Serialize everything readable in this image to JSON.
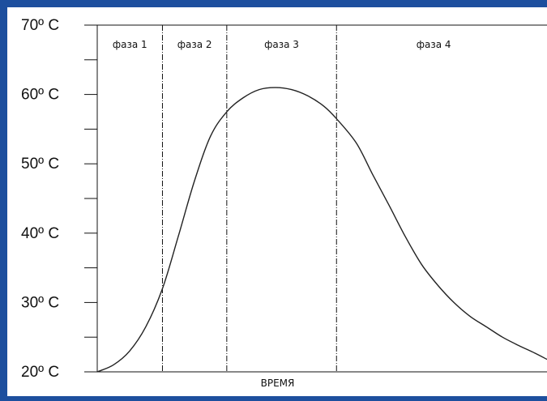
{
  "chart_data": {
    "type": "line",
    "title": "",
    "xlabel": "ВРЕМЯ",
    "ylabel": "",
    "ylim": [
      20,
      70
    ],
    "yticks": [
      {
        "value": 70,
        "label": "70º C"
      },
      {
        "value": 60,
        "label": "60º C"
      },
      {
        "value": 50,
        "label": "50º C"
      },
      {
        "value": 40,
        "label": "40º C"
      },
      {
        "value": 30,
        "label": "30º C"
      },
      {
        "value": 20,
        "label": "20º C"
      }
    ],
    "minor_y_step": 5,
    "xlim": [
      0,
      100
    ],
    "phases": [
      {
        "label": "фаза 1",
        "start": 0,
        "end": 14.5
      },
      {
        "label": "фаза 2",
        "start": 14.5,
        "end": 28.8
      },
      {
        "label": "фаза 3",
        "start": 28.8,
        "end": 53.2
      },
      {
        "label": "фаза 4",
        "start": 53.2,
        "end": 100
      }
    ],
    "series": [
      {
        "x": [
          0,
          3.6,
          7.2,
          10.8,
          14.5,
          18.0,
          21.6,
          25.2,
          28.8,
          32.4,
          36.0,
          39.6,
          43.2,
          46.8,
          50.4,
          53.2,
          57.6,
          61.2,
          64.9,
          68.5,
          72.1,
          75.7,
          79.3,
          82.9,
          86.5,
          90.1,
          93.7,
          97.3,
          100
        ],
        "y": [
          20.0,
          21.0,
          23.0,
          26.5,
          32.0,
          39.5,
          47.5,
          54.0,
          57.5,
          59.5,
          60.7,
          61.0,
          60.7,
          59.8,
          58.3,
          56.5,
          53.0,
          48.5,
          44.0,
          39.5,
          35.5,
          32.5,
          30.0,
          28.0,
          26.5,
          25.0,
          23.8,
          22.7,
          21.8
        ]
      }
    ],
    "grid": false,
    "colors": {
      "frame": "#1d4f9e",
      "line": "#222222"
    }
  }
}
